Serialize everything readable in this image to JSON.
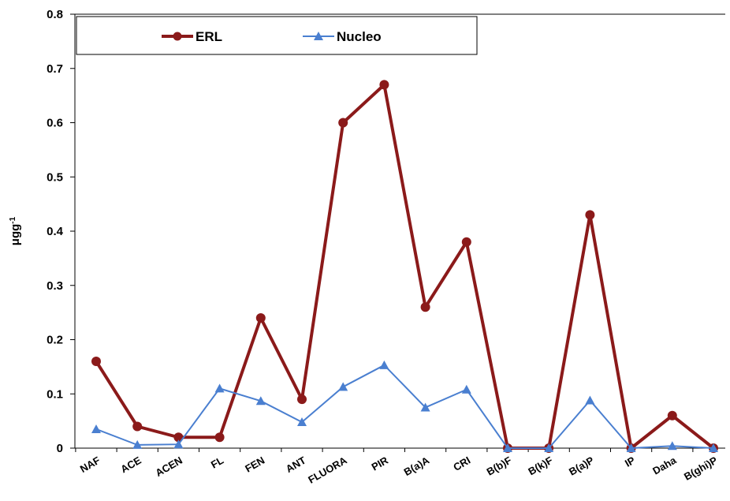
{
  "chart_data": {
    "type": "line",
    "categories": [
      "NAF",
      "ACE",
      "ACEN",
      "FL",
      "FEN",
      "ANT",
      "FLUORA",
      "PIR",
      "B(a)A",
      "CRI",
      "B(b)F",
      "B(k)F",
      "B(a)P",
      "IP",
      "Daha",
      "B(ghi)P"
    ],
    "series": [
      {
        "name": "ERL",
        "color": "#8b1a1a",
        "marker": "circle",
        "values": [
          0.16,
          0.04,
          0.02,
          0.02,
          0.24,
          0.09,
          0.6,
          0.67,
          0.26,
          0.38,
          0.0,
          0.0,
          0.43,
          0.0,
          0.06,
          0.0
        ]
      },
      {
        "name": "Nucleo",
        "color": "#4a7fd0",
        "marker": "triangle",
        "values": [
          0.035,
          0.006,
          0.007,
          0.11,
          0.087,
          0.048,
          0.113,
          0.153,
          0.075,
          0.108,
          0.0,
          0.0,
          0.088,
          0.0,
          0.004,
          0.0
        ]
      }
    ],
    "ylabel": "μgg",
    "ylabel_sup": "-1",
    "ylim": [
      0,
      0.8
    ],
    "yticks": [
      "0",
      "0.1",
      "0.2",
      "0.3",
      "0.4",
      "0.5",
      "0.6",
      "0.7",
      "0.8"
    ],
    "grid": false,
    "legend": "top-left"
  }
}
